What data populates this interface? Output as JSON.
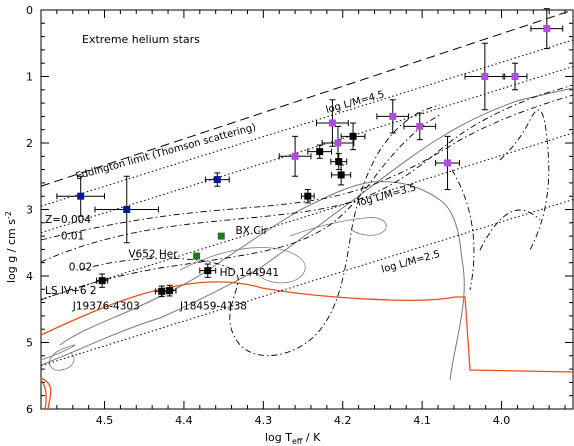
{
  "chart_data": {
    "type": "scatter",
    "title": "Extreme helium stars",
    "xlabel_main": "log T",
    "xlabel_sub": "eff",
    "xlabel_unit": " / K",
    "ylabel": "log g / cm s",
    "ylabel_sup": "-2",
    "xlim": [
      4.58,
      3.91
    ],
    "ylim": [
      6,
      0
    ],
    "x_ticks": [
      4.5,
      4.4,
      4.3,
      4.2,
      4.1,
      4.0
    ],
    "x_tick_labels": [
      "4.5",
      "4.4",
      "4.3",
      "4.2",
      "4.1",
      "4.0"
    ],
    "y_ticks": [
      0,
      1,
      2,
      3,
      4,
      5,
      6
    ],
    "y_tick_labels": [
      "0",
      "1",
      "2",
      "3",
      "4",
      "5",
      "6"
    ],
    "colors": {
      "black": "#000000",
      "blue": "#0a1a8c",
      "purple": "#b04be0",
      "green": "#1e7a1e",
      "red": "#e8501e",
      "grey": "#777777"
    },
    "series": [
      {
        "color": "black",
        "points": [
          {
            "x": 4.503,
            "y": 4.07,
            "xerr": 0.007,
            "yerr": 0.1
          },
          {
            "x": 4.428,
            "y": 4.23,
            "xerr": 0.008,
            "yerr": 0.08
          },
          {
            "x": 4.418,
            "y": 4.22,
            "xerr": 0.008,
            "yerr": 0.08
          },
          {
            "x": 4.37,
            "y": 3.92,
            "xerr": 0.01,
            "yerr": 0.1
          },
          {
            "x": 4.244,
            "y": 2.8,
            "xerr": 0.008,
            "yerr": 0.1
          },
          {
            "x": 4.229,
            "y": 2.13,
            "xerr": 0.015,
            "yerr": 0.1
          },
          {
            "x": 4.205,
            "y": 2.28,
            "xerr": 0.01,
            "yerr": 0.12
          },
          {
            "x": 4.202,
            "y": 2.48,
            "xerr": 0.012,
            "yerr": 0.15
          },
          {
            "x": 4.187,
            "y": 1.9,
            "xerr": 0.015,
            "yerr": 0.2
          }
        ]
      },
      {
        "color": "blue",
        "points": [
          {
            "x": 4.53,
            "y": 2.8,
            "xerr": 0.03,
            "yerr": 0.3
          },
          {
            "x": 4.472,
            "y": 3.0,
            "xerr": 0.04,
            "yerr": 0.5
          },
          {
            "x": 4.358,
            "y": 2.55,
            "xerr": 0.015,
            "yerr": 0.1
          }
        ]
      },
      {
        "color": "purple",
        "points": [
          {
            "x": 4.26,
            "y": 2.2,
            "xerr": 0.02,
            "yerr": 0.3
          },
          {
            "x": 4.213,
            "y": 1.7,
            "xerr": 0.02,
            "yerr": 0.35
          },
          {
            "x": 4.206,
            "y": 2.0,
            "xerr": 0.02,
            "yerr": 0.25
          },
          {
            "x": 4.137,
            "y": 1.6,
            "xerr": 0.02,
            "yerr": 0.25
          },
          {
            "x": 4.103,
            "y": 1.75,
            "xerr": 0.02,
            "yerr": 0.2
          },
          {
            "x": 4.068,
            "y": 2.3,
            "xerr": 0.015,
            "yerr": 0.4
          },
          {
            "x": 4.021,
            "y": 1.0,
            "xerr": 0.025,
            "yerr": 0.5
          },
          {
            "x": 3.983,
            "y": 1.0,
            "xerr": 0.015,
            "yerr": 0.2
          },
          {
            "x": 3.943,
            "y": 0.28,
            "xerr": 0.02,
            "yerr": 0.3
          }
        ]
      },
      {
        "color": "green",
        "points": [
          {
            "x": 4.353,
            "y": 3.4
          },
          {
            "x": 4.384,
            "y": 3.7
          }
        ]
      }
    ],
    "lines": [
      {
        "style": "dashed",
        "label": "Eddington limit (Thomson scattering)",
        "points": [
          [
            4.58,
            2.65
          ],
          [
            3.91,
            0.0
          ]
        ]
      },
      {
        "style": "dotted",
        "points": [
          [
            4.58,
            2.95
          ],
          [
            3.91,
            0.45
          ]
        ]
      },
      {
        "style": "dotted",
        "label": "log L/M=4.5",
        "points": [
          [
            4.58,
            3.35
          ],
          [
            3.91,
            0.85
          ]
        ]
      },
      {
        "style": "dotted",
        "label": "log L/M=3.5",
        "points": [
          [
            4.58,
            4.35
          ],
          [
            3.91,
            1.85
          ]
        ]
      },
      {
        "style": "dotted",
        "label": "log L/M=2.5",
        "points": [
          [
            4.58,
            5.35
          ],
          [
            3.91,
            2.85
          ]
        ]
      }
    ],
    "annotations": [
      {
        "text": "Z=0.004",
        "x": 4.575,
        "y": 3.2
      },
      {
        "text": "0.01",
        "x": 4.555,
        "y": 3.45
      },
      {
        "text": "0.02",
        "x": 4.545,
        "y": 3.92
      },
      {
        "text": "V652 Her",
        "x": 4.47,
        "y": 3.72
      },
      {
        "text": "BX Cir",
        "x": 4.335,
        "y": 3.37
      },
      {
        "text": "HD 144941",
        "x": 4.355,
        "y": 4.0
      },
      {
        "text": "LS IV+6 2",
        "x": 4.575,
        "y": 4.27
      },
      {
        "text": "J19376-4303",
        "x": 4.54,
        "y": 4.5
      },
      {
        "text": "J18459-4138",
        "x": 4.405,
        "y": 4.5
      }
    ]
  }
}
